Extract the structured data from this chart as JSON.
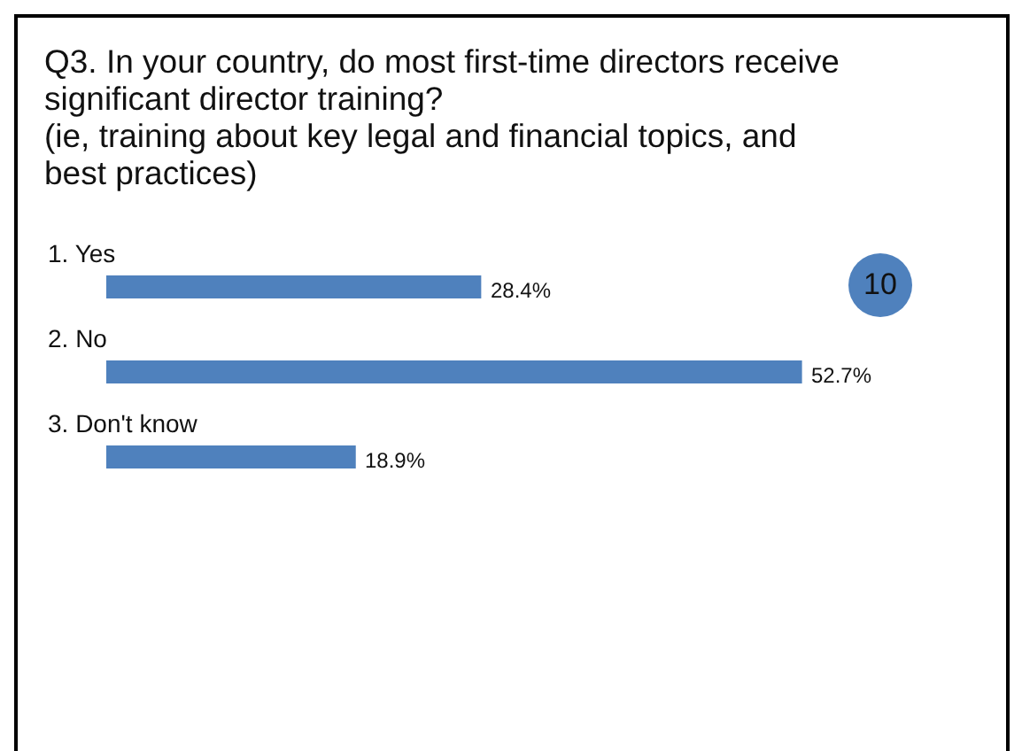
{
  "chart_data": {
    "type": "bar",
    "orientation": "horizontal",
    "title": "Q3. In your country, do most first-time directors receive significant director training?",
    "subtitle": "(ie, training about key legal and financial topics, and best practices)",
    "categories": [
      "1. Yes",
      "2. No",
      "3. Don't know"
    ],
    "values": [
      28.4,
      52.7,
      18.9
    ],
    "color": "#4f81bd",
    "value_labels": [
      "28.4%",
      "52.7%",
      "18.9%"
    ],
    "annotations": [
      "10"
    ]
  }
}
